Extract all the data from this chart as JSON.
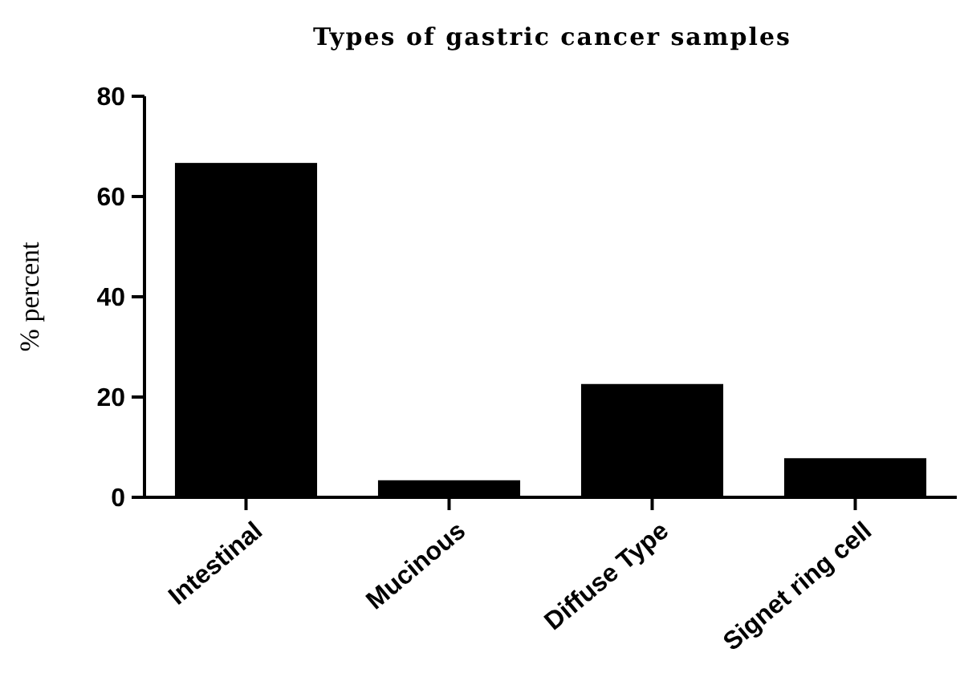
{
  "chart_data": {
    "type": "bar",
    "title": "Types of gastric cancer samples",
    "ylabel": "% percent",
    "categories": [
      "Intestinal",
      "Mucinous",
      "Diffuse Type",
      "Signet ring cell"
    ],
    "values": [
      66.7,
      3.4,
      22.6,
      7.8
    ],
    "color": "#000000",
    "ylim": [
      0,
      80
    ],
    "yticks": [
      0,
      20,
      40,
      60,
      80
    ],
    "grid": false
  }
}
